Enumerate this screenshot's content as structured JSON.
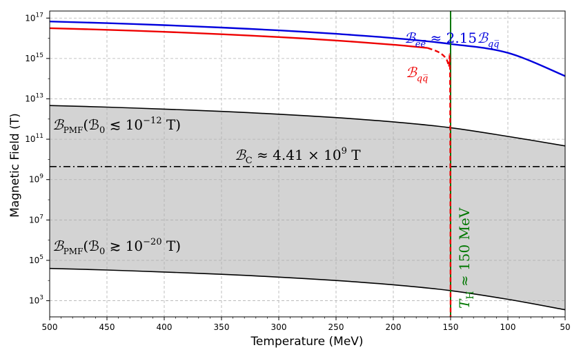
{
  "chart_data": {
    "type": "line",
    "xlabel": "Temperature (MeV)",
    "ylabel": "Magnetic Field (T)",
    "xlim": [
      500,
      50
    ],
    "ylim_log10": [
      2.2,
      17.35
    ],
    "x_ticks": [
      500,
      450,
      400,
      350,
      300,
      250,
      200,
      150,
      100,
      50
    ],
    "x_tick_labels": [
      "500",
      "450",
      "400",
      "350",
      "300",
      "250",
      "200",
      "150",
      "100",
      "50"
    ],
    "y_ticks_log10": [
      3,
      5,
      7,
      9,
      11,
      13,
      15,
      17
    ],
    "y_tick_labels": [
      {
        "base": "10",
        "exp": "3"
      },
      {
        "base": "10",
        "exp": "5"
      },
      {
        "base": "10",
        "exp": "7"
      },
      {
        "base": "10",
        "exp": "9"
      },
      {
        "base": "10",
        "exp": "11"
      },
      {
        "base": "10",
        "exp": "13"
      },
      {
        "base": "10",
        "exp": "15"
      },
      {
        "base": "10",
        "exp": "17"
      }
    ],
    "grid": true,
    "y_scale": "log",
    "series": [
      {
        "key": "B_ee",
        "color": "#0000dd",
        "style": "solid",
        "x": [
          500,
          450,
          400,
          350,
          300,
          250,
          200,
          150,
          100,
          50
        ],
        "log10y": [
          16.83,
          16.75,
          16.65,
          16.53,
          16.39,
          16.22,
          16.01,
          15.72,
          15.28,
          14.13
        ]
      },
      {
        "key": "B_qq",
        "color": "#ee0000",
        "style": "solid",
        "x": [
          500,
          450,
          400,
          350,
          300,
          250,
          200,
          170
        ],
        "log10y": [
          16.5,
          16.42,
          16.32,
          16.2,
          16.06,
          15.89,
          15.68,
          15.52
        ]
      },
      {
        "key": "B_qq_tail",
        "color": "#ee0000",
        "style": "dashed",
        "x": [
          170,
          160,
          154,
          151.5,
          150.5,
          150
        ],
        "log10y": [
          15.52,
          15.3,
          15.0,
          14.6,
          14.2,
          2.2
        ]
      },
      {
        "key": "PMF_upper",
        "color": "#000000",
        "style": "solid",
        "x": [
          500,
          450,
          400,
          350,
          300,
          250,
          200,
          150,
          100,
          50
        ],
        "log10y": [
          12.67,
          12.59,
          12.49,
          12.38,
          12.24,
          12.07,
          11.86,
          11.57,
          11.14,
          10.67
        ]
      },
      {
        "key": "PMF_lower",
        "color": "#000000",
        "style": "solid",
        "x": [
          500,
          450,
          400,
          350,
          300,
          250,
          200,
          150,
          100,
          50
        ],
        "log10y": [
          4.6,
          4.52,
          4.42,
          4.31,
          4.17,
          4.0,
          3.79,
          3.5,
          3.07,
          2.55
        ]
      },
      {
        "key": "B_C",
        "color": "#000000",
        "style": "dashdot",
        "x": [
          500,
          50
        ],
        "log10y": [
          9.644,
          9.644
        ]
      },
      {
        "key": "T_H",
        "color": "#007700",
        "style": "solid",
        "vertical_x": 150
      }
    ],
    "shaded_band": {
      "between": [
        "PMF_lower",
        "PMF_upper"
      ],
      "color": "#d3d3d3"
    },
    "annotations": {
      "B_ee": {
        "main": "ℬ",
        "sub": "ee̅",
        "rel": " ≈ 2.15",
        "main2": "ℬ",
        "sub2": "qq̅",
        "color": "#0000dd"
      },
      "B_qq": {
        "main": "ℬ",
        "sub": "qq̅",
        "color": "#ee0000"
      },
      "pmf_upper": {
        "main": "ℬ",
        "sub": "PMF",
        "text": "(ℬ",
        "sub0": "0",
        "rel": " ≲ 10",
        "exp": "−12",
        "unit": " T)"
      },
      "pmf_lower": {
        "main": "ℬ",
        "sub": "PMF",
        "text": "(ℬ",
        "sub0": "0",
        "rel": " ≳ 10",
        "exp": "−20",
        "unit": " T)"
      },
      "bc": {
        "main": "ℬ",
        "sub": "C",
        "rel": " ≈ 4.41 × 10",
        "exp": "9",
        "unit": "  T"
      },
      "th": {
        "main": "T",
        "sub": "H",
        "rel": " ≈ 150 MeV",
        "color": "#007700"
      }
    }
  }
}
